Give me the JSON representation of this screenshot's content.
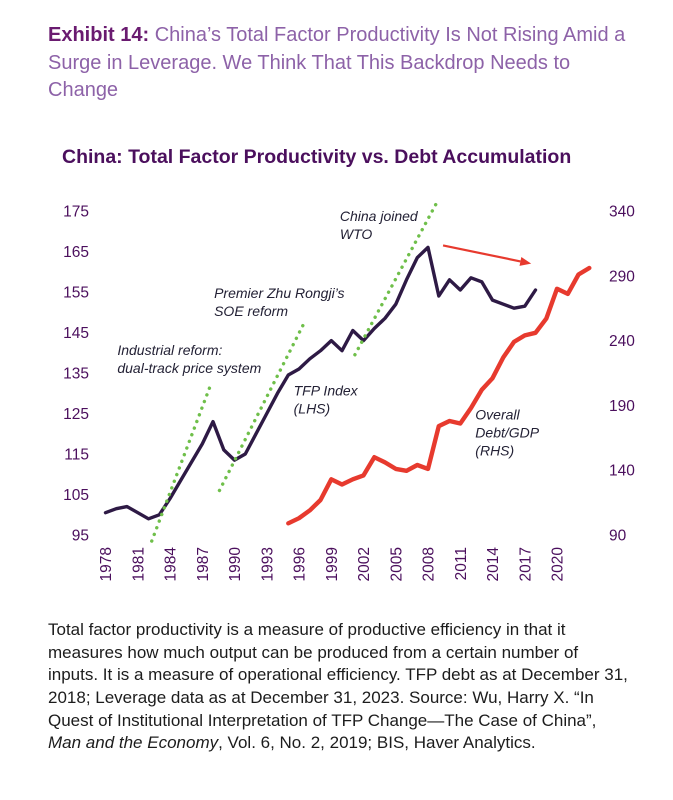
{
  "exhibit": {
    "label": "Exhibit 14:",
    "title": "China’s Total Factor Productivity Is Not Rising Amid a Surge in Leverage. We Think That This Backdrop Needs to Change"
  },
  "colors": {
    "exhibit_label": "#6a1b70",
    "exhibit_title": "#8d62a8",
    "chart_title": "#4b0f5d",
    "axis_text": "#4b0f5d",
    "tfp_line": "#2e1a45",
    "debt_line": "#e73a2e",
    "trendline": "#6fbf4a",
    "annotation_text": "#232135",
    "footnote_text": "#1c1c1c"
  },
  "chart_data": {
    "type": "line",
    "title": "China: Total Factor Productivity vs. Debt Accumulation",
    "grid": false,
    "x_axis": {
      "range": [
        1977.3,
        2024.0
      ],
      "ticks": [
        1978,
        1981,
        1984,
        1987,
        1990,
        1993,
        1996,
        1999,
        2002,
        2005,
        2008,
        2011,
        2014,
        2017,
        2020
      ]
    },
    "left_axis": {
      "label": "TFP Index (LHS)",
      "range": [
        95,
        175
      ],
      "ticks": [
        95,
        105,
        115,
        125,
        135,
        145,
        155,
        165,
        175
      ]
    },
    "right_axis": {
      "label": "Overall Debt/GDP (RHS)",
      "range": [
        90,
        340
      ],
      "ticks": [
        90,
        140,
        190,
        240,
        290,
        340
      ]
    },
    "series": [
      {
        "name": "TFP Index (LHS)",
        "axis": "left",
        "color_key": "tfp_line",
        "width": 3.4,
        "x": [
          1978,
          1979,
          1980,
          1981,
          1982,
          1983,
          1984,
          1985,
          1986,
          1987,
          1988,
          1989,
          1990,
          1991,
          1992,
          1993,
          1994,
          1995,
          1996,
          1997,
          1998,
          1999,
          2000,
          2001,
          2002,
          2003,
          2004,
          2005,
          2006,
          2007,
          2008,
          2009,
          2010,
          2011,
          2012,
          2013,
          2014,
          2015,
          2016,
          2017,
          2018
        ],
        "values": [
          100.5,
          101.5,
          102,
          100.5,
          99,
          100,
          104,
          108.5,
          113,
          117.5,
          123,
          116,
          113.5,
          115,
          120,
          125,
          130,
          134.5,
          136,
          138.5,
          140.5,
          143,
          140.5,
          145.5,
          143,
          146,
          148.5,
          152,
          158,
          163.5,
          166,
          154,
          158,
          155.5,
          158.5,
          157.5,
          153,
          152,
          151,
          151.5,
          155.5
        ]
      },
      {
        "name": "Overall Debt/GDP (RHS)",
        "axis": "right",
        "color_key": "debt_line",
        "width": 4.4,
        "x": [
          1995,
          1996,
          1997,
          1998,
          1999,
          2000,
          2001,
          2002,
          2003,
          2004,
          2005,
          2006,
          2007,
          2008,
          2009,
          2010,
          2011,
          2012,
          2013,
          2014,
          2015,
          2016,
          2017,
          2018,
          2019,
          2020,
          2021,
          2022,
          2023
        ],
        "values": [
          99,
          103,
          109,
          117,
          133,
          129,
          133,
          136,
          150,
          146,
          141,
          139.5,
          144,
          141,
          174,
          178,
          176,
          188,
          202,
          211,
          227,
          239,
          244,
          246,
          257,
          280,
          276,
          291,
          296
        ]
      }
    ],
    "trendlines": [
      {
        "x": [
          1982.3,
          1987.7
        ],
        "y": [
          93.5,
          131.5
        ]
      },
      {
        "x": [
          1988.6,
          1996.6
        ],
        "y": [
          106,
          148
        ]
      },
      {
        "x": [
          2001.2,
          2008.8
        ],
        "y": [
          139.5,
          177
        ]
      }
    ],
    "annotations": [
      {
        "x": 1979.1,
        "y": 139.5,
        "lines": [
          "Industrial reform:",
          "dual-track price system"
        ]
      },
      {
        "x": 1988.1,
        "y": 153.5,
        "lines": [
          "Premier Zhu Rongji’s",
          "SOE reform"
        ]
      },
      {
        "x": 1999.8,
        "y": 172.5,
        "lines": [
          "China joined",
          "WTO"
        ]
      },
      {
        "x": 1995.5,
        "y": 129.5,
        "lines": [
          "TFP Index",
          "(LHS)"
        ]
      },
      {
        "x": 2012.4,
        "y": 123.5,
        "lines": [
          "Overall",
          "Debt/GDP",
          "(RHS)"
        ]
      }
    ],
    "arrow": {
      "from_x": 2009.4,
      "from_y": 166.5,
      "to_x": 2017.6,
      "to_y": 162
    }
  },
  "footnote": {
    "text_before": "Total factor productivity is a measure of productive efficiency in that it measures how much output can be produced from a certain number of inputs. It is a measure of operational efficiency. TFP debt as at December 31, 2018; Leverage data as at December 31, 2023. Source: Wu, Harry X. “In Quest of Institutional Interpretation of TFP Change—The Case of China”, ",
    "italic_part": "Man and the Economy",
    "text_after": ", Vol. 6, No. 2, 2019; BIS, Haver Analytics."
  }
}
